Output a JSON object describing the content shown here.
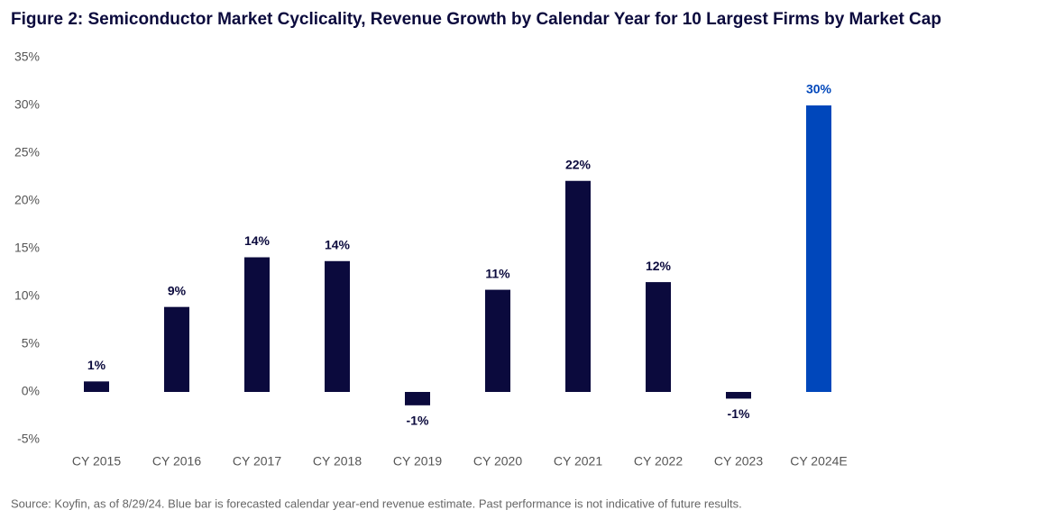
{
  "chart_data": {
    "type": "bar",
    "title": "Figure 2: Semiconductor Market Cyclicality, Revenue Growth by Calendar Year for 10 Largest Firms by Market Cap",
    "source": "Source: Koyfin, as of 8/29/24. Blue bar is forecasted calendar year-end revenue estimate. Past performance is not indicative of future results.",
    "categories": [
      "CY 2015",
      "CY 2016",
      "CY 2017",
      "CY 2018",
      "CY 2019",
      "CY 2020",
      "CY 2021",
      "CY 2022",
      "CY 2023",
      "CY 2024E"
    ],
    "values": [
      1.1,
      8.9,
      14.1,
      13.7,
      -1.4,
      10.7,
      22.1,
      11.5,
      -0.7,
      30
    ],
    "value_labels": [
      "1%",
      "9%",
      "14%",
      "14%",
      "-1%",
      "11%",
      "22%",
      "12%",
      "-1%",
      "30%"
    ],
    "colors": [
      "#0b0a3d",
      "#0b0a3d",
      "#0b0a3d",
      "#0b0a3d",
      "#0b0a3d",
      "#0b0a3d",
      "#0b0a3d",
      "#0b0a3d",
      "#0b0a3d",
      "#0047bb"
    ],
    "ylim": [
      -5,
      35
    ],
    "yticks": [
      {
        "value": -5,
        "label": "-5%"
      },
      {
        "value": 0,
        "label": "0%"
      },
      {
        "value": 5,
        "label": "5%"
      },
      {
        "value": 10,
        "label": "10%"
      },
      {
        "value": 15,
        "label": "15%"
      },
      {
        "value": 20,
        "label": "20%"
      },
      {
        "value": 25,
        "label": "25%"
      },
      {
        "value": 30,
        "label": "30%"
      },
      {
        "value": 35,
        "label": "35%"
      }
    ],
    "grid": false
  }
}
